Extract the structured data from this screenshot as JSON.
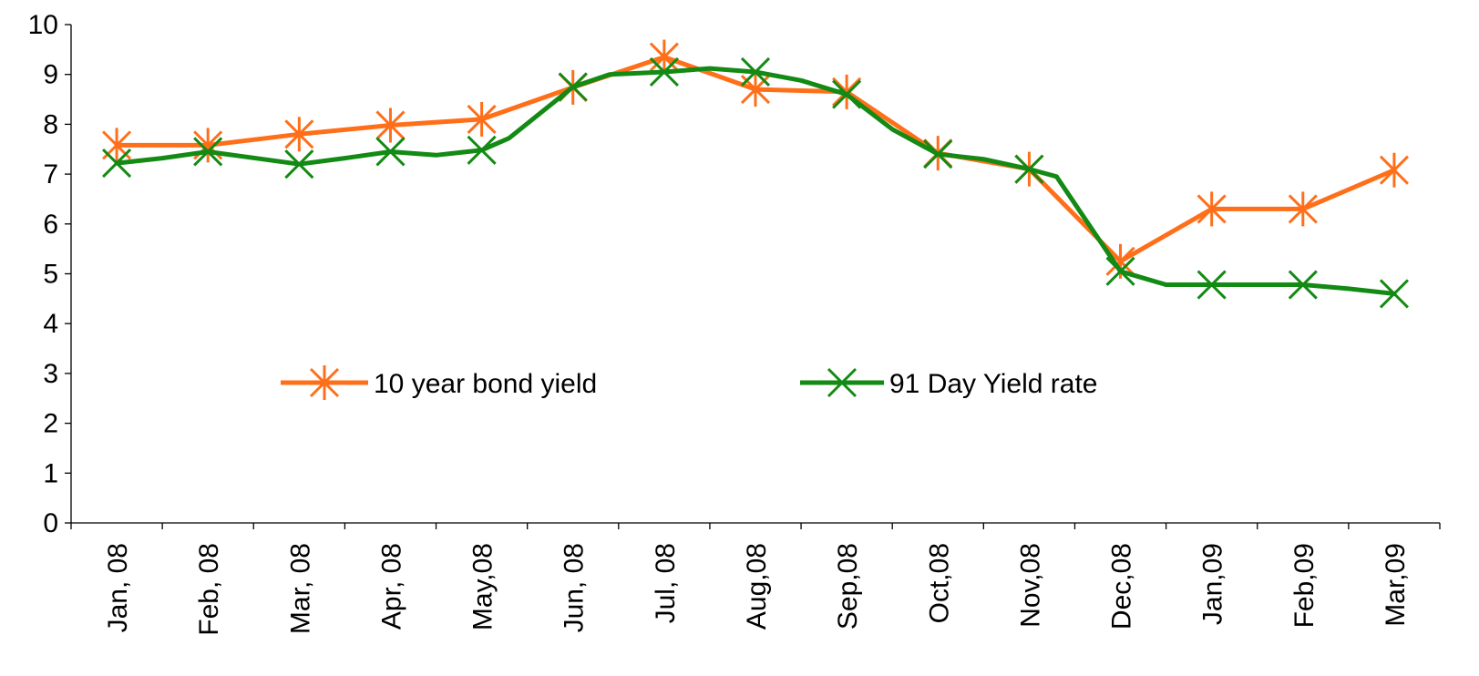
{
  "chart_data": {
    "type": "line",
    "title": "",
    "xlabel": "",
    "ylabel": "",
    "ylim": [
      0,
      10
    ],
    "yticks": [
      0,
      1,
      2,
      3,
      4,
      5,
      6,
      7,
      8,
      9,
      10
    ],
    "grid": false,
    "legend_position": "middle",
    "categories": [
      "Jan, 08",
      "Feb, 08",
      "Mar, 08",
      "Apr, 08",
      "May,08",
      "Jun, 08",
      "Jul, 08",
      "Aug,08",
      "Sep,08",
      "Oct,08",
      "Nov,08",
      "Dec,08",
      "Jan,09",
      "Feb,09",
      "Mar,09"
    ],
    "series": [
      {
        "name": "10 year bond yield",
        "color": "#ff6f1a",
        "marker": "asterisk",
        "values": [
          7.58,
          7.58,
          7.8,
          7.98,
          8.1,
          8.74,
          9.35,
          8.7,
          8.65,
          7.42,
          7.1,
          5.25,
          6.3,
          6.3,
          7.08
        ]
      },
      {
        "name": "91 Day Yield rate",
        "color": "#138a13",
        "marker": "x",
        "x": [
          0,
          0.5,
          1,
          2,
          2.5,
          3,
          3.5,
          4,
          4.3,
          5,
          5.4,
          6,
          6.5,
          7,
          7.5,
          8,
          8.5,
          9,
          9.5,
          10,
          10.3,
          11,
          11.5,
          12,
          13,
          13.5,
          14
        ],
        "values": [
          7.22,
          7.32,
          7.45,
          7.2,
          7.32,
          7.45,
          7.38,
          7.48,
          7.72,
          8.75,
          9.0,
          9.05,
          9.12,
          9.05,
          8.88,
          8.6,
          7.9,
          7.4,
          7.3,
          7.1,
          6.95,
          5.05,
          4.78,
          4.78,
          4.78,
          4.7,
          4.6
        ],
        "marker_values": [
          7.22,
          7.45,
          7.2,
          7.45,
          7.48,
          8.75,
          9.05,
          9.05,
          8.6,
          7.4,
          7.1,
          5.05,
          4.78,
          4.78,
          4.6
        ]
      }
    ]
  }
}
